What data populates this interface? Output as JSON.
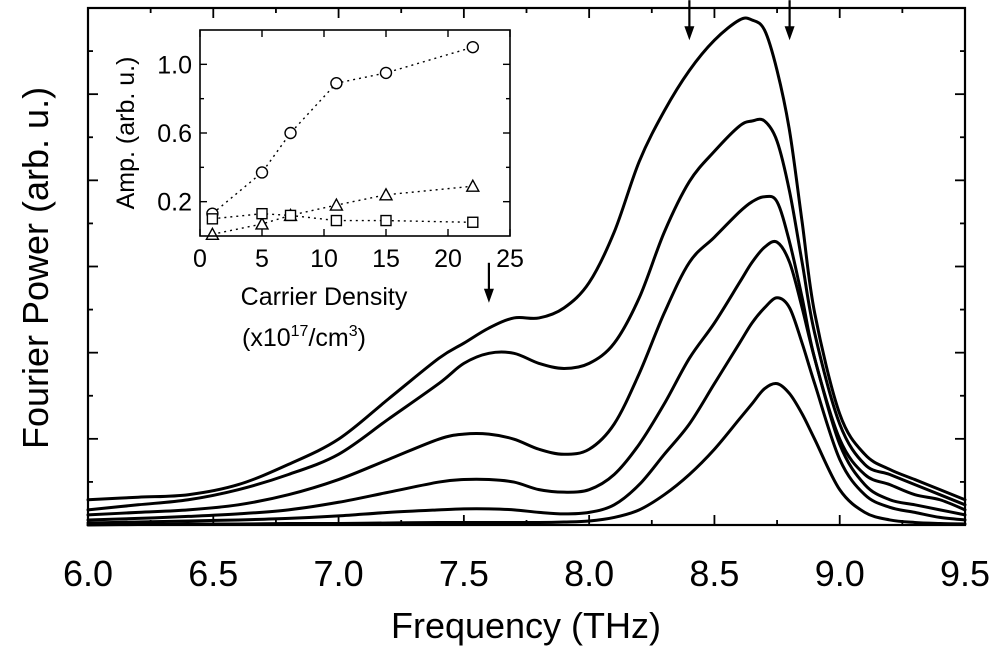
{
  "chart_data": [
    {
      "type": "line",
      "title": "",
      "xlabel": "Frequency (THz)",
      "ylabel": "Fourier Power (arb. u.)",
      "xlim": [
        6.0,
        9.5
      ],
      "ylim": [
        0,
        1.0
      ],
      "y_tick_labels_shown": false,
      "x_ticks": [
        "6.0",
        "6.5",
        "7.0",
        "7.5",
        "8.0",
        "8.5",
        "9.0",
        "9.5"
      ],
      "grid": false,
      "series": [
        {
          "x": [
            6.0,
            6.2,
            6.4,
            6.6,
            6.8,
            7.0,
            7.2,
            7.4,
            7.5,
            7.6,
            7.7,
            7.8,
            7.9,
            8.0,
            8.1,
            8.2,
            8.3,
            8.4,
            8.5,
            8.6,
            8.65,
            8.7,
            8.75,
            8.8,
            8.85,
            8.9,
            9.0,
            9.1,
            9.2,
            9.3,
            9.4,
            9.5
          ],
          "values": [
            0.05,
            0.055,
            0.06,
            0.08,
            0.12,
            0.17,
            0.25,
            0.33,
            0.36,
            0.39,
            0.41,
            0.41,
            0.43,
            0.48,
            0.58,
            0.72,
            0.82,
            0.9,
            0.96,
            1.0,
            1.0,
            0.98,
            0.9,
            0.78,
            0.6,
            0.42,
            0.22,
            0.14,
            0.11,
            0.09,
            0.07,
            0.05
          ]
        },
        {
          "x": [
            6.0,
            6.2,
            6.4,
            6.6,
            6.8,
            7.0,
            7.2,
            7.4,
            7.5,
            7.6,
            7.7,
            7.8,
            7.9,
            8.0,
            8.1,
            8.2,
            8.3,
            8.4,
            8.5,
            8.6,
            8.65,
            8.7,
            8.75,
            8.8,
            8.85,
            8.9,
            9.0,
            9.1,
            9.2,
            9.3,
            9.4,
            9.5
          ],
          "values": [
            0.03,
            0.04,
            0.05,
            0.07,
            0.1,
            0.14,
            0.21,
            0.28,
            0.32,
            0.34,
            0.34,
            0.32,
            0.31,
            0.32,
            0.36,
            0.45,
            0.58,
            0.68,
            0.74,
            0.79,
            0.8,
            0.8,
            0.76,
            0.66,
            0.52,
            0.38,
            0.2,
            0.12,
            0.1,
            0.08,
            0.06,
            0.04
          ]
        },
        {
          "x": [
            6.0,
            6.2,
            6.4,
            6.6,
            6.8,
            7.0,
            7.2,
            7.4,
            7.5,
            7.6,
            7.7,
            7.8,
            7.9,
            8.0,
            8.1,
            8.2,
            8.3,
            8.4,
            8.5,
            8.6,
            8.65,
            8.7,
            8.75,
            8.8,
            8.85,
            8.9,
            9.0,
            9.1,
            9.2,
            9.3,
            9.4,
            9.5
          ],
          "values": [
            0.02,
            0.025,
            0.03,
            0.04,
            0.06,
            0.09,
            0.13,
            0.17,
            0.18,
            0.18,
            0.17,
            0.15,
            0.14,
            0.15,
            0.2,
            0.3,
            0.42,
            0.52,
            0.57,
            0.62,
            0.64,
            0.65,
            0.64,
            0.56,
            0.45,
            0.33,
            0.17,
            0.1,
            0.08,
            0.06,
            0.05,
            0.03
          ]
        },
        {
          "x": [
            6.0,
            6.2,
            6.4,
            6.6,
            6.8,
            7.0,
            7.2,
            7.4,
            7.5,
            7.6,
            7.7,
            7.8,
            7.9,
            8.0,
            8.1,
            8.2,
            8.3,
            8.4,
            8.5,
            8.6,
            8.65,
            8.7,
            8.75,
            8.8,
            8.85,
            8.9,
            9.0,
            9.1,
            9.2,
            9.3,
            9.4,
            9.5
          ],
          "values": [
            0.01,
            0.013,
            0.017,
            0.022,
            0.03,
            0.045,
            0.065,
            0.085,
            0.09,
            0.09,
            0.085,
            0.07,
            0.065,
            0.07,
            0.1,
            0.16,
            0.24,
            0.33,
            0.4,
            0.48,
            0.52,
            0.55,
            0.56,
            0.52,
            0.43,
            0.33,
            0.16,
            0.08,
            0.05,
            0.04,
            0.03,
            0.02
          ]
        },
        {
          "x": [
            6.0,
            6.2,
            6.4,
            6.6,
            6.8,
            7.0,
            7.2,
            7.4,
            7.5,
            7.6,
            7.7,
            7.8,
            7.9,
            8.0,
            8.1,
            8.2,
            8.3,
            8.4,
            8.5,
            8.6,
            8.65,
            8.7,
            8.75,
            8.8,
            8.85,
            8.9,
            9.0,
            9.1,
            9.2,
            9.3,
            9.4,
            9.5
          ],
          "values": [
            0.004,
            0.006,
            0.008,
            0.01,
            0.013,
            0.018,
            0.025,
            0.03,
            0.032,
            0.032,
            0.03,
            0.025,
            0.022,
            0.025,
            0.04,
            0.08,
            0.14,
            0.2,
            0.28,
            0.36,
            0.4,
            0.43,
            0.45,
            0.43,
            0.36,
            0.28,
            0.13,
            0.06,
            0.035,
            0.025,
            0.015,
            0.01
          ]
        },
        {
          "x": [
            6.0,
            6.2,
            6.4,
            6.6,
            6.8,
            7.0,
            7.2,
            7.4,
            7.5,
            7.6,
            7.7,
            7.8,
            7.9,
            8.0,
            8.1,
            8.2,
            8.3,
            8.4,
            8.5,
            8.6,
            8.65,
            8.7,
            8.75,
            8.8,
            8.85,
            8.9,
            9.0,
            9.1,
            9.2,
            9.3,
            9.4,
            9.5
          ],
          "values": [
            0.0,
            0.001,
            0.002,
            0.002,
            0.003,
            0.003,
            0.004,
            0.005,
            0.005,
            0.005,
            0.005,
            0.005,
            0.006,
            0.008,
            0.015,
            0.03,
            0.06,
            0.1,
            0.15,
            0.21,
            0.24,
            0.27,
            0.28,
            0.26,
            0.22,
            0.17,
            0.07,
            0.025,
            0.01,
            0.005,
            0.003,
            0.002
          ]
        }
      ],
      "annotations": [
        {
          "type": "arrow",
          "x": 7.6,
          "y": 0.44
        },
        {
          "type": "arrow",
          "x": 8.4,
          "y": 0.96
        },
        {
          "type": "arrow",
          "x": 8.8,
          "y": 0.96
        }
      ]
    },
    {
      "type": "scatter",
      "title": "",
      "xlabel": "Carrier Density",
      "xlabel_line2_prefix": "(x10",
      "xlabel_line2_sup1": "17",
      "xlabel_line2_mid": "/cm",
      "xlabel_line2_sup2": "3",
      "xlabel_line2_suffix": ")",
      "ylabel": "Amp. (arb. u.)",
      "xlim": [
        0,
        25
      ],
      "ylim": [
        0,
        1.2
      ],
      "x_ticks": [
        "0",
        "5",
        "10",
        "15",
        "20",
        "25"
      ],
      "y_ticks": [
        "0.2",
        "0.6",
        "1.0"
      ],
      "grid": false,
      "series": [
        {
          "marker": "circle",
          "x": [
            1,
            5,
            7.3,
            11,
            15,
            22
          ],
          "values": [
            0.13,
            0.37,
            0.6,
            0.89,
            0.95,
            1.1
          ]
        },
        {
          "marker": "triangle",
          "x": [
            1,
            5,
            7.3,
            11,
            15,
            22
          ],
          "values": [
            0.01,
            0.07,
            0.12,
            0.18,
            0.24,
            0.29
          ]
        },
        {
          "marker": "square",
          "x": [
            1,
            5,
            7.3,
            11,
            15,
            22
          ],
          "values": [
            0.1,
            0.13,
            0.12,
            0.09,
            0.09,
            0.08
          ]
        }
      ]
    }
  ]
}
